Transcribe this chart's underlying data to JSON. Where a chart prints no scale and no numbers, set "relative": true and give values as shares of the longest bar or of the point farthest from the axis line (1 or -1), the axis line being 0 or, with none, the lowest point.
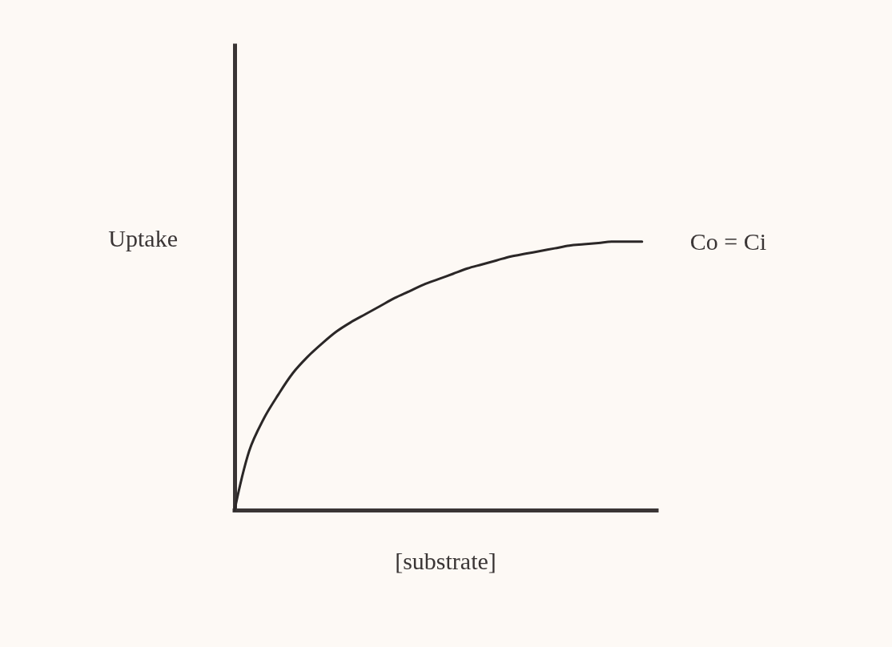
{
  "chart_data": {
    "type": "line",
    "relative": true,
    "xlabel": "[substrate]",
    "ylabel": "Uptake",
    "categories": [
      null,
      null,
      null,
      null,
      null,
      null,
      null,
      null,
      null,
      null,
      null,
      null,
      null,
      null,
      null,
      null,
      null,
      null,
      null,
      null,
      null,
      null,
      null,
      null,
      null,
      null,
      null,
      null,
      null,
      null
    ],
    "series": [
      {
        "name": "Co = Ci",
        "color": "#2b2727",
        "values": [
          0,
          0.22,
          0.34,
          0.43,
          0.51,
          0.57,
          0.62,
          0.665,
          0.7,
          0.73,
          0.76,
          0.79,
          0.815,
          0.84,
          0.86,
          0.88,
          0.9,
          0.915,
          0.93,
          0.945,
          0.955,
          0.965,
          0.975,
          0.985,
          0.99,
          0.995,
          1,
          1,
          1,
          null
        ]
      }
    ]
  }
}
